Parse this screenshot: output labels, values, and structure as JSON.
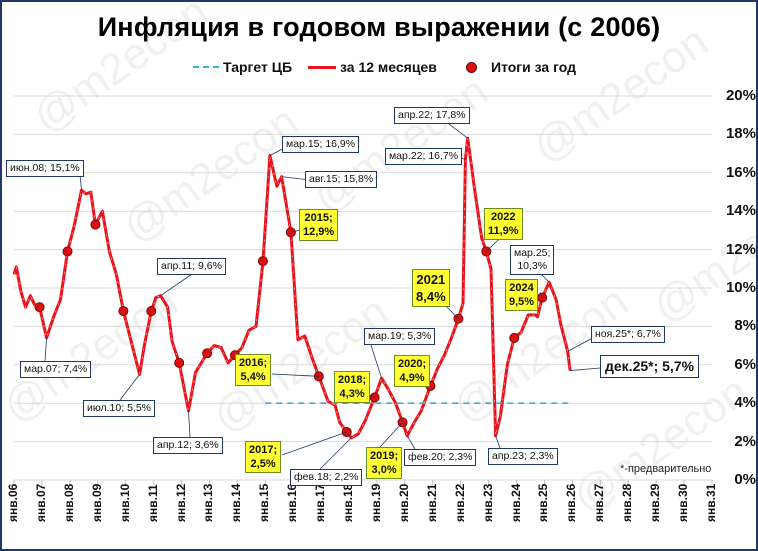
{
  "chart_data": {
    "type": "line",
    "title": "Инфляция в годовом выражении (с 2006)",
    "xlabel": "",
    "ylabel": "",
    "ylim": [
      0,
      20
    ],
    "yticks": [
      "0%",
      "2%",
      "4%",
      "6%",
      "8%",
      "10%",
      "12%",
      "14%",
      "16%",
      "18%",
      "20%"
    ],
    "xticks": [
      "янв.06",
      "янв.07",
      "янв.08",
      "янв.09",
      "янв.10",
      "янв.11",
      "янв.12",
      "янв.13",
      "янв.14",
      "янв.15",
      "янв.16",
      "янв.17",
      "янв.18",
      "янв.19",
      "янв.20",
      "янв.21",
      "янв.22",
      "янв.23",
      "янв.24",
      "янв.25",
      "янв.26",
      "янв.27",
      "янв.28",
      "янв.29",
      "янв.30",
      "янв.31"
    ],
    "grid": true,
    "legend_position": "top",
    "legend": [
      "Таргет ЦБ",
      "за 12 месяцев",
      "Итоги за год"
    ],
    "series": [
      {
        "name": "за 12 месяцев",
        "color": "#e8141b",
        "points": [
          [
            "2006-01",
            10.7
          ],
          [
            "2006-02",
            11.1
          ],
          [
            "2006-04",
            9.8
          ],
          [
            "2006-06",
            9.0
          ],
          [
            "2006-08",
            9.6
          ],
          [
            "2006-10",
            9.1
          ],
          [
            "2006-12",
            9.0
          ],
          [
            "2007-03",
            7.4
          ],
          [
            "2007-06",
            8.5
          ],
          [
            "2007-09",
            9.4
          ],
          [
            "2007-12",
            11.9
          ],
          [
            "2008-03",
            13.3
          ],
          [
            "2008-06",
            15.1
          ],
          [
            "2008-08",
            14.9
          ],
          [
            "2008-10",
            15.0
          ],
          [
            "2008-12",
            13.3
          ],
          [
            "2009-03",
            14.0
          ],
          [
            "2009-06",
            11.9
          ],
          [
            "2009-09",
            10.7
          ],
          [
            "2009-12",
            8.8
          ],
          [
            "2010-07",
            5.5
          ],
          [
            "2010-09",
            7.0
          ],
          [
            "2010-12",
            8.8
          ],
          [
            "2011-02",
            9.5
          ],
          [
            "2011-04",
            9.6
          ],
          [
            "2011-07",
            9.0
          ],
          [
            "2011-09",
            7.2
          ],
          [
            "2011-12",
            6.1
          ],
          [
            "2012-04",
            3.6
          ],
          [
            "2012-07",
            5.6
          ],
          [
            "2012-12",
            6.6
          ],
          [
            "2013-03",
            7.0
          ],
          [
            "2013-06",
            6.9
          ],
          [
            "2013-09",
            6.1
          ],
          [
            "2013-12",
            6.5
          ],
          [
            "2014-03",
            6.9
          ],
          [
            "2014-06",
            7.8
          ],
          [
            "2014-09",
            8.0
          ],
          [
            "2014-12",
            11.4
          ],
          [
            "2015-03",
            16.9
          ],
          [
            "2015-05",
            15.8
          ],
          [
            "2015-06",
            15.3
          ],
          [
            "2015-08",
            15.8
          ],
          [
            "2015-12",
            12.9
          ],
          [
            "2016-03",
            7.3
          ],
          [
            "2016-06",
            7.5
          ],
          [
            "2016-09",
            6.4
          ],
          [
            "2016-12",
            5.4
          ],
          [
            "2017-04",
            4.1
          ],
          [
            "2017-07",
            3.9
          ],
          [
            "2017-09",
            3.0
          ],
          [
            "2017-12",
            2.5
          ],
          [
            "2018-02",
            2.2
          ],
          [
            "2018-05",
            2.4
          ],
          [
            "2018-08",
            3.1
          ],
          [
            "2018-12",
            4.3
          ],
          [
            "2019-03",
            5.3
          ],
          [
            "2019-06",
            4.7
          ],
          [
            "2019-09",
            4.0
          ],
          [
            "2019-12",
            3.0
          ],
          [
            "2020-02",
            2.3
          ],
          [
            "2020-05",
            3.0
          ],
          [
            "2020-08",
            3.6
          ],
          [
            "2020-12",
            4.9
          ],
          [
            "2021-03",
            5.8
          ],
          [
            "2021-06",
            6.5
          ],
          [
            "2021-09",
            7.4
          ],
          [
            "2021-12",
            8.4
          ],
          [
            "2022-02",
            9.2
          ],
          [
            "2022-03",
            16.7
          ],
          [
            "2022-04",
            17.8
          ],
          [
            "2022-07",
            15.1
          ],
          [
            "2022-10",
            12.6
          ],
          [
            "2022-12",
            11.9
          ],
          [
            "2023-02",
            11.0
          ],
          [
            "2023-04",
            2.3
          ],
          [
            "2023-06",
            3.3
          ],
          [
            "2023-09",
            6.0
          ],
          [
            "2023-12",
            7.4
          ],
          [
            "2024-03",
            7.7
          ],
          [
            "2024-06",
            8.6
          ],
          [
            "2024-09",
            8.6
          ],
          [
            "2024-10",
            8.5
          ],
          [
            "2024-12",
            9.5
          ],
          [
            "2025-03",
            10.3
          ],
          [
            "2025-06",
            9.4
          ],
          [
            "2025-08",
            8.1
          ],
          [
            "2025-11",
            6.7
          ],
          [
            "2025-12",
            5.7
          ]
        ]
      },
      {
        "name": "Таргет ЦБ",
        "color": "#3ab0d8",
        "style": "dashed",
        "points": [
          [
            "2015-01",
            4.0
          ],
          [
            "2026-01",
            4.0
          ]
        ]
      },
      {
        "name": "Итоги за год",
        "color": "#d81010",
        "style": "markers",
        "points": [
          [
            "2006-12",
            9.0
          ],
          [
            "2007-12",
            11.9
          ],
          [
            "2008-12",
            13.3
          ],
          [
            "2009-12",
            8.8
          ],
          [
            "2010-12",
            8.8
          ],
          [
            "2011-12",
            6.1
          ],
          [
            "2012-12",
            6.6
          ],
          [
            "2013-12",
            6.5
          ],
          [
            "2014-12",
            11.4
          ],
          [
            "2015-12",
            12.9
          ],
          [
            "2016-12",
            5.4
          ],
          [
            "2017-12",
            2.5
          ],
          [
            "2018-12",
            4.3
          ],
          [
            "2019-12",
            3.0
          ],
          [
            "2020-12",
            4.9
          ],
          [
            "2021-12",
            8.4
          ],
          [
            "2022-12",
            11.9
          ],
          [
            "2023-12",
            7.4
          ],
          [
            "2024-12",
            9.5
          ]
        ]
      }
    ],
    "annotations": [
      "июн.08; 15,1%",
      "мар.07; 7,4%",
      "июл.10; 5,5%",
      "апр.11; 9,6%",
      "апр.12; 3,6%",
      "мар.15; 16,9%",
      "авг.15; 15,8%",
      "2015; 12,9%",
      "2016; 5,4%",
      "2017; 2,5%",
      "фев.18; 2,2%",
      "2018; 4,3%",
      "мар.19; 5,3%",
      "2019; 3,0%",
      "2020; 4,9%",
      "фев.20; 2,3%",
      "2021 8,4%",
      "мар.22; 16,7%",
      "апр.22; 17,8%",
      "2022 11,9%",
      "апр.23; 2,3%",
      "2024 9,5%",
      "мар.25; 10,3%",
      "ноя.25*; 6,7%",
      "дек.25*; 5,7%",
      "*-предварительно"
    ]
  },
  "header": {
    "title": "Инфляция в годовом выражении (с 2006)"
  },
  "legend": {
    "target": "Таргет ЦБ",
    "monthly": "за 12 месяцев",
    "yearly": "Итоги за год"
  },
  "colors": {
    "line": "#e8141b",
    "target": "#3ab0d8",
    "marker": "#d81010",
    "frame": "#1f3864",
    "highlight": "#ffff33"
  },
  "axis": {
    "y": [
      "0%",
      "2%",
      "4%",
      "6%",
      "8%",
      "10%",
      "12%",
      "14%",
      "16%",
      "18%",
      "20%"
    ],
    "x": [
      "янв.06",
      "янв.07",
      "янв.08",
      "янв.09",
      "янв.10",
      "янв.11",
      "янв.12",
      "янв.13",
      "янв.14",
      "янв.15",
      "янв.16",
      "янв.17",
      "янв.18",
      "янв.19",
      "янв.20",
      "янв.21",
      "янв.22",
      "янв.23",
      "янв.24",
      "янв.25",
      "янв.26",
      "янв.27",
      "янв.28",
      "янв.29",
      "янв.30",
      "янв.31"
    ]
  },
  "callouts": {
    "jun08": "июн.08; 15,1%",
    "mar07": "мар.07; 7,4%",
    "jul10": "июл.10; 5,5%",
    "apr11": "апр.11; 9,6%",
    "apr12": "апр.12; 3,6%",
    "mar15": "мар.15; 16,9%",
    "aug15": "авг.15; 15,8%",
    "feb18": "фев.18; 2,2%",
    "mar19": "мар.19; 5,3%",
    "feb20": "фев.20; 2,3%",
    "mar22": "мар.22; 16,7%",
    "apr22": "апр.22; 17,8%",
    "apr23": "апр.23; 2,3%",
    "mar25": "мар.25;\n10,3%",
    "nov25": "ноя.25*; 6,7%",
    "dec25": "дек.25*; 5,7%"
  },
  "year_callouts": {
    "y2015": "2015;\n12,9%",
    "y2016": "2016;\n5,4%",
    "y2017": "2017;\n2,5%",
    "y2018": "2018;\n4,3%",
    "y2019": "2019;\n3,0%",
    "y2020": "2020;\n4,9%",
    "y2021": "2021\n8,4%",
    "y2022": "2022\n11,9%",
    "y2024": "2024\n9,5%"
  },
  "footnote": "*-предварительно",
  "watermark": "@m2econ"
}
